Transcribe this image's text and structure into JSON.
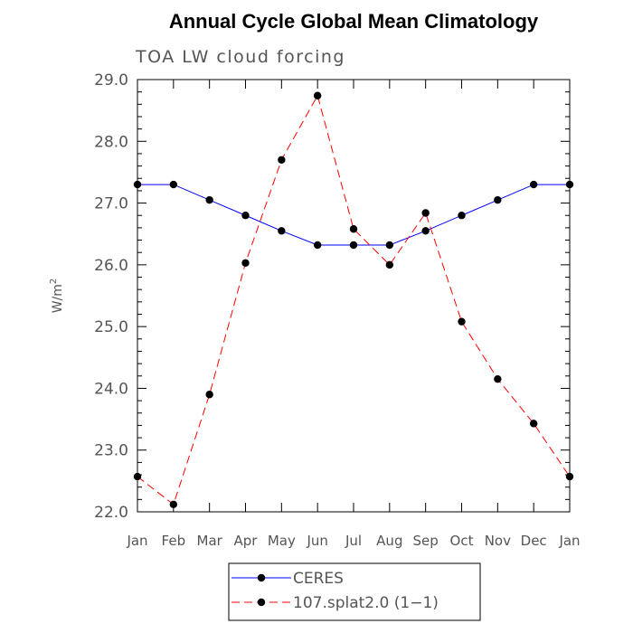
{
  "chart_data": {
    "type": "line",
    "title": "Annual Cycle Global Mean Climatology",
    "subtitle": "TOA LW cloud forcing",
    "ylabel": "W/m",
    "ylabel_superscript": "2",
    "xlabel": "",
    "ylim": [
      22.0,
      29.0
    ],
    "yticks": [
      "22.0",
      "23.0",
      "24.0",
      "25.0",
      "26.0",
      "27.0",
      "28.0",
      "29.0"
    ],
    "categories": [
      "Jan",
      "Feb",
      "Mar",
      "Apr",
      "May",
      "Jun",
      "Jul",
      "Aug",
      "Sep",
      "Oct",
      "Nov",
      "Dec",
      "Jan"
    ],
    "grid": false,
    "legend_position": "bottom",
    "series": [
      {
        "name": "CERES",
        "color": "#0000ff",
        "dash": "solid",
        "values": [
          27.3,
          27.3,
          27.05,
          26.8,
          26.55,
          26.32,
          26.32,
          26.32,
          26.55,
          26.8,
          27.05,
          27.3,
          27.3
        ]
      },
      {
        "name": "107.splat2.0 (1−1)",
        "color": "#ff0000",
        "dash": "dashed",
        "values": [
          22.57,
          22.12,
          23.9,
          26.03,
          27.7,
          28.74,
          26.58,
          26.0,
          26.84,
          25.08,
          24.15,
          23.43,
          22.57
        ]
      }
    ]
  }
}
